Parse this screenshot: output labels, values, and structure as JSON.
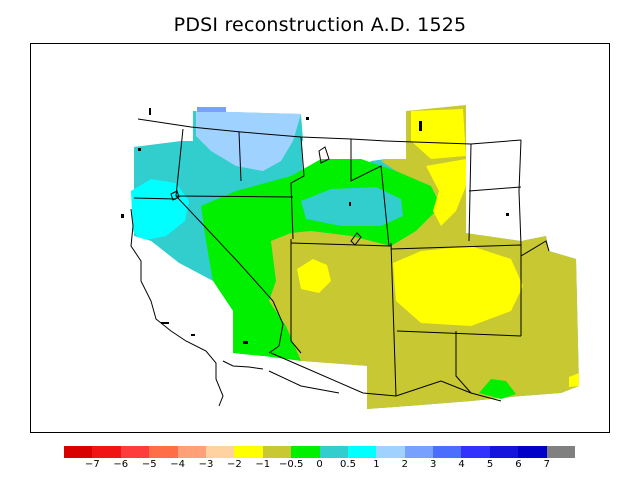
{
  "title": "PDSI reconstruction A.D. 1525",
  "legend": {
    "colors": [
      "#d90000",
      "#f01414",
      "#ff3c3c",
      "#ff6e46",
      "#ffa078",
      "#ffd2a0",
      "#ffff00",
      "#c8c832",
      "#00f000",
      "#32cdcd",
      "#00ffff",
      "#a0d2ff",
      "#78a0ff",
      "#4b6eff",
      "#3232ff",
      "#1414dc",
      "#0000c8",
      "#808080"
    ],
    "labels": [
      "−7",
      "−6",
      "−5",
      "−4",
      "−3",
      "−2",
      "−1",
      "−0.5",
      "0",
      "0.5",
      "1",
      "2",
      "3",
      "4",
      "5",
      "6",
      "7"
    ]
  },
  "palette": {
    "lightblue": "#a0d2ff",
    "cyan": "#00ffff",
    "teal": "#32cdcd",
    "green": "#00f000",
    "olive": "#c8c832",
    "yellow": "#ffff00",
    "blue": "#78a0ff"
  }
}
